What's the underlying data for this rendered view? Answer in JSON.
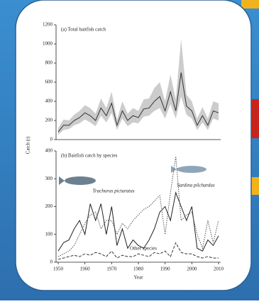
{
  "chart_data": [
    {
      "type": "line",
      "title": "(a) Total baitfish catch",
      "x": [
        1950,
        1952,
        1954,
        1956,
        1958,
        1960,
        1962,
        1964,
        1966,
        1968,
        1970,
        1972,
        1974,
        1976,
        1978,
        1980,
        1982,
        1984,
        1986,
        1988,
        1990,
        1992,
        1994,
        1996,
        1998,
        2000,
        2002,
        2004,
        2006,
        2008,
        2010
      ],
      "xlim": [
        1950,
        2010
      ],
      "ylim": [
        0,
        1200
      ],
      "yticks": [
        0,
        200,
        400,
        600,
        800,
        1000,
        1200
      ],
      "series": [
        {
          "color": "#333333",
          "dash": "solid",
          "band_color": "#cccccc",
          "values": [
            80,
            150,
            150,
            200,
            230,
            280,
            250,
            200,
            330,
            250,
            380,
            150,
            300,
            200,
            250,
            230,
            320,
            330,
            400,
            450,
            300,
            500,
            300,
            700,
            350,
            300,
            150,
            250,
            150,
            300,
            280
          ],
          "lower": [
            50,
            100,
            110,
            150,
            170,
            210,
            180,
            140,
            250,
            180,
            280,
            100,
            220,
            140,
            180,
            170,
            240,
            250,
            300,
            330,
            220,
            370,
            220,
            450,
            260,
            220,
            100,
            180,
            100,
            220,
            200
          ],
          "upper": [
            120,
            210,
            200,
            260,
            300,
            360,
            330,
            270,
            430,
            330,
            500,
            210,
            400,
            270,
            330,
            300,
            420,
            430,
            540,
            600,
            400,
            680,
            420,
            1050,
            470,
            400,
            220,
            340,
            220,
            400,
            380
          ]
        }
      ]
    },
    {
      "type": "line",
      "title": "(b) Baitfish catch by species",
      "xlabel": "Year",
      "ylabel": "Catch (t)",
      "x": [
        1950,
        1952,
        1954,
        1956,
        1958,
        1960,
        1962,
        1964,
        1966,
        1968,
        1970,
        1972,
        1974,
        1976,
        1978,
        1980,
        1982,
        1984,
        1986,
        1988,
        1990,
        1992,
        1994,
        1996,
        1998,
        2000,
        2002,
        2004,
        2006,
        2008,
        2010
      ],
      "xlim": [
        1950,
        2010
      ],
      "xticks": [
        1950,
        1960,
        1970,
        1980,
        1990,
        2000,
        2010
      ],
      "ylim": [
        0,
        400
      ],
      "yticks": [
        0,
        100,
        200,
        300,
        400
      ],
      "series": [
        {
          "name": "Trachurus picturatus",
          "color": "#222222",
          "dash": "solid",
          "values": [
            40,
            70,
            80,
            120,
            150,
            100,
            210,
            150,
            210,
            100,
            200,
            60,
            120,
            50,
            80,
            60,
            50,
            80,
            120,
            180,
            200,
            150,
            250,
            200,
            150,
            200,
            50,
            40,
            80,
            60,
            95
          ]
        },
        {
          "name": "Sardina pilchardus",
          "color": "#555555",
          "dash": "dotted",
          "values": [
            20,
            30,
            40,
            60,
            100,
            140,
            170,
            180,
            120,
            150,
            150,
            100,
            140,
            120,
            150,
            170,
            190,
            200,
            220,
            240,
            100,
            250,
            380,
            150,
            170,
            180,
            100,
            50,
            150,
            70,
            150
          ]
        },
        {
          "name": "Other species",
          "color": "#333333",
          "dash": "dashed",
          "values": [
            10,
            15,
            20,
            25,
            20,
            30,
            25,
            35,
            30,
            20,
            40,
            15,
            25,
            20,
            20,
            30,
            25,
            20,
            35,
            30,
            40,
            20,
            70,
            35,
            30,
            30,
            20,
            15,
            20,
            15,
            15
          ]
        }
      ]
    }
  ]
}
